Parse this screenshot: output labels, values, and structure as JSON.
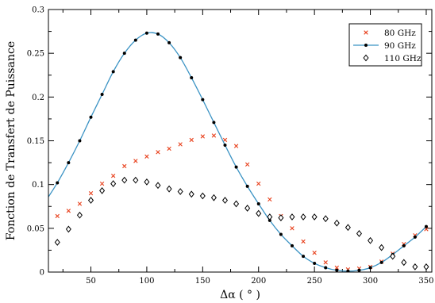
{
  "chart_data": {
    "type": "scatter",
    "xlabel": "Δα   ( ° )",
    "ylabel": "Fonction de Transfert de Puissance",
    "xlim": [
      12,
      355
    ],
    "ylim": [
      0,
      0.3
    ],
    "xticks": [
      50,
      100,
      150,
      200,
      250,
      300,
      350
    ],
    "yticks": [
      0,
      0.05,
      0.1,
      0.15,
      0.2,
      0.25,
      0.3
    ],
    "grid": false,
    "legend_position": "top-right",
    "series": [
      {
        "name": "80 GHz",
        "marker": "x",
        "color": "#e8401c",
        "x": [
          20,
          30,
          40,
          50,
          60,
          70,
          80,
          90,
          100,
          110,
          120,
          130,
          140,
          150,
          160,
          170,
          180,
          190,
          200,
          210,
          220,
          230,
          240,
          250,
          260,
          270,
          280,
          290,
          300,
          310,
          320,
          330,
          340,
          350
        ],
        "y": [
          0.064,
          0.07,
          0.078,
          0.09,
          0.101,
          0.11,
          0.121,
          0.127,
          0.132,
          0.137,
          0.141,
          0.146,
          0.151,
          0.155,
          0.156,
          0.151,
          0.144,
          0.123,
          0.101,
          0.083,
          0.064,
          0.05,
          0.035,
          0.022,
          0.011,
          0.005,
          0.003,
          0.004,
          0.006,
          0.012,
          0.021,
          0.032,
          0.042,
          0.049
        ]
      },
      {
        "name": "90 GHz",
        "marker": "line+dot",
        "color": "#3b93c4",
        "x": [
          10,
          20,
          30,
          40,
          50,
          60,
          70,
          80,
          90,
          100,
          110,
          120,
          130,
          140,
          150,
          160,
          170,
          180,
          190,
          200,
          210,
          220,
          230,
          240,
          250,
          260,
          270,
          280,
          290,
          300,
          310,
          320,
          330,
          340,
          350
        ],
        "y": [
          0.082,
          0.102,
          0.125,
          0.15,
          0.177,
          0.203,
          0.229,
          0.25,
          0.265,
          0.273,
          0.272,
          0.262,
          0.245,
          0.222,
          0.197,
          0.171,
          0.145,
          0.12,
          0.098,
          0.078,
          0.059,
          0.043,
          0.03,
          0.018,
          0.01,
          0.005,
          0.002,
          0.001,
          0.002,
          0.005,
          0.011,
          0.02,
          0.03,
          0.04,
          0.052
        ]
      },
      {
        "name": "110 GHz",
        "marker": "diamond",
        "color": "#000000",
        "x": [
          20,
          30,
          40,
          50,
          60,
          70,
          80,
          90,
          100,
          110,
          120,
          130,
          140,
          150,
          160,
          170,
          180,
          190,
          200,
          210,
          220,
          230,
          240,
          250,
          260,
          270,
          280,
          290,
          300,
          310,
          320,
          330,
          340,
          350
        ],
        "y": [
          0.034,
          0.049,
          0.065,
          0.082,
          0.093,
          0.101,
          0.105,
          0.105,
          0.103,
          0.099,
          0.095,
          0.092,
          0.089,
          0.087,
          0.085,
          0.082,
          0.078,
          0.073,
          0.067,
          0.063,
          0.062,
          0.063,
          0.063,
          0.063,
          0.061,
          0.056,
          0.051,
          0.044,
          0.036,
          0.028,
          0.018,
          0.011,
          0.006,
          0.006
        ]
      }
    ]
  }
}
